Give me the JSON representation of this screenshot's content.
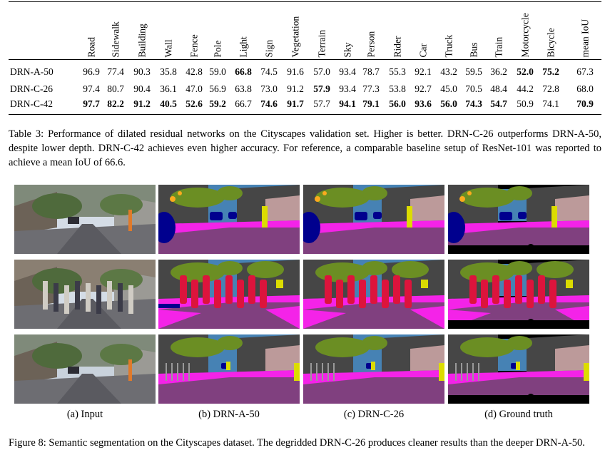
{
  "table": {
    "columns": [
      "Road",
      "Sidewalk",
      "Building",
      "Wall",
      "Fence",
      "Pole",
      "Light",
      "Sign",
      "Vegetation",
      "Terrain",
      "Sky",
      "Person",
      "Rider",
      "Car",
      "Truck",
      "Bus",
      "Train",
      "Motorcycle",
      "Bicycle",
      "mean IoU"
    ],
    "rows": [
      {
        "name": "DRN-A-50",
        "values": [
          "96.9",
          "77.4",
          "90.3",
          "35.8",
          "42.8",
          "59.0",
          "66.8",
          "74.5",
          "91.6",
          "57.0",
          "93.4",
          "78.7",
          "55.3",
          "92.1",
          "43.2",
          "59.5",
          "36.2",
          "52.0",
          "75.2",
          "67.3"
        ],
        "bold": [
          6,
          17,
          18
        ]
      },
      {
        "name": "DRN-C-26",
        "values": [
          "97.4",
          "80.7",
          "90.4",
          "36.1",
          "47.0",
          "56.9",
          "63.8",
          "73.0",
          "91.2",
          "57.9",
          "93.4",
          "77.3",
          "53.8",
          "92.7",
          "45.0",
          "70.5",
          "48.4",
          "44.2",
          "72.8",
          "68.0"
        ],
        "bold": [
          9
        ]
      },
      {
        "name": "DRN-C-42",
        "values": [
          "97.7",
          "82.2",
          "91.2",
          "40.5",
          "52.6",
          "59.2",
          "66.7",
          "74.6",
          "91.7",
          "57.7",
          "94.1",
          "79.1",
          "56.0",
          "93.6",
          "56.0",
          "74.3",
          "54.7",
          "50.9",
          "74.1",
          "70.9"
        ],
        "bold": [
          0,
          1,
          2,
          3,
          4,
          5,
          7,
          8,
          10,
          11,
          12,
          13,
          14,
          15,
          16,
          19
        ]
      }
    ]
  },
  "table_caption": "Table 3: Performance of dilated residual networks on the Cityscapes validation set. Higher is better. DRN-C-26 outperforms DRN-A-50, despite lower depth. DRN-C-42 achieves even higher accuracy. For reference, a comparable baseline setup of ResNet-101 was reported to achieve a mean IoU of 66.6.",
  "figure": {
    "subcaptions": [
      "(a) Input",
      "(b) DRN-A-50",
      "(c) DRN-C-26",
      "(d) Ground truth"
    ],
    "caption": "Figure 8: Semantic segmentation on the Cityscapes dataset. The degridded DRN-C-26 produces cleaner results than the deeper DRN-A-50."
  },
  "colors": {
    "road": "#80407f",
    "sidewalk": "#f423e8",
    "building": "#464646",
    "vegetation": "#6b8e23",
    "sky": "#4682b4",
    "person": "#dc143c",
    "car": "#00008e",
    "pole": "#999999",
    "sign": "#dcdc00",
    "light": "#faaa1e",
    "wall": "#bc9a9a",
    "void": "#000000"
  }
}
